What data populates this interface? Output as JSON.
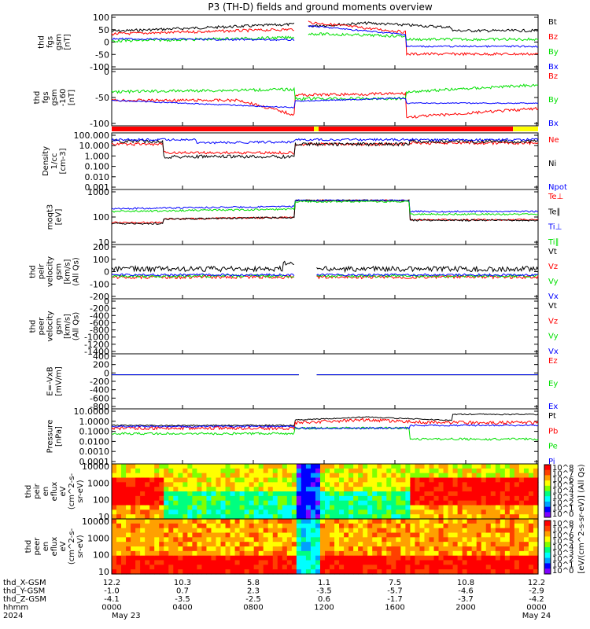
{
  "title": "P3 (TH-D) fields and ground moments overview",
  "colors": {
    "black": "#000000",
    "red": "#ff0000",
    "green": "#00e000",
    "blue": "#0000ff",
    "yellow": "#ffff00"
  },
  "chart_data": [
    {
      "type": "line",
      "ylabel": [
        "thd",
        "fgs",
        "gsm",
        "[nT]"
      ],
      "ylim": [
        -100,
        100
      ],
      "ticks": [
        "100",
        "50",
        "0",
        "-50",
        "-100"
      ],
      "legend": [
        {
          "name": "Bt",
          "color": "#000000"
        },
        {
          "name": "Bz",
          "color": "#ff0000"
        },
        {
          "name": "By",
          "color": "#00e000"
        },
        {
          "name": "Bx",
          "color": "#0000ff"
        }
      ]
    },
    {
      "type": "line",
      "ylabel": [
        "thd",
        "fgs",
        "gsm",
        "-160",
        "[nT]"
      ],
      "ylim": [
        -130,
        40
      ],
      "ticks": [
        "0",
        "-50",
        "-100"
      ],
      "legend": [
        {
          "name": "Bz",
          "color": "#ff0000"
        },
        {
          "name": "By",
          "color": "#00e000"
        },
        {
          "name": "Bx",
          "color": "#0000ff"
        }
      ]
    },
    {
      "type": "line",
      "ylabel": [
        "Density",
        "1/cc",
        "[cm-3]"
      ],
      "scale": "log",
      "ticks": [
        "100.000",
        "10.000",
        "1.000",
        "0.100",
        "0.010",
        "0.001"
      ],
      "legend": [
        {
          "name": "Ne",
          "color": "#ff0000"
        },
        {
          "name": "Ni",
          "color": "#000000"
        },
        {
          "name": "Npot",
          "color": "#0000ff"
        }
      ]
    },
    {
      "type": "line",
      "ylabel": [
        "moqt3",
        "[eV]"
      ],
      "scale": "log",
      "ticks": [
        "1000",
        "100",
        "10"
      ],
      "legend": [
        {
          "name": "Te⊥",
          "color": "#ff0000"
        },
        {
          "name": "Te∥",
          "color": "#000000"
        },
        {
          "name": "Ti⊥",
          "color": "#0000ff"
        },
        {
          "name": "Ti∥",
          "color": "#00e000"
        }
      ]
    },
    {
      "type": "line",
      "ylabel": [
        "thd",
        "peir",
        "velocity",
        "gsm",
        "[km/s]",
        "(All Qs)"
      ],
      "ylim": [
        -250,
        300
      ],
      "ticks": [
        "200",
        "100",
        "0",
        "-100",
        "-200"
      ],
      "legend": [
        {
          "name": "Vt",
          "color": "#000000"
        },
        {
          "name": "Vz",
          "color": "#ff0000"
        },
        {
          "name": "Vy",
          "color": "#00e000"
        },
        {
          "name": "Vx",
          "color": "#0000ff"
        }
      ]
    },
    {
      "type": "line",
      "ylabel": [
        "thd",
        "peer",
        "velocity",
        "gsm",
        "[km/s]",
        "(All Qs)"
      ],
      "ylim": [
        -1500,
        100
      ],
      "ticks": [
        "0",
        "-200",
        "-400",
        "-600",
        "-800",
        "-1000",
        "-1200",
        "-1400"
      ],
      "legend": [
        {
          "name": "Vt",
          "color": "#000000"
        },
        {
          "name": "Vz",
          "color": "#ff0000"
        },
        {
          "name": "Vy",
          "color": "#00e000"
        },
        {
          "name": "Vx",
          "color": "#0000ff"
        }
      ]
    },
    {
      "type": "line",
      "ylabel": [
        "E=-VxB",
        "[mV/m]"
      ],
      "ylim": [
        -850,
        450
      ],
      "ticks": [
        "400",
        "200",
        "0",
        "-200",
        "-400",
        "-600",
        "-800"
      ],
      "legend": [
        {
          "name": "Ez",
          "color": "#ff0000"
        },
        {
          "name": "Ey",
          "color": "#00e000"
        },
        {
          "name": "Ex",
          "color": "#0000ff"
        }
      ]
    },
    {
      "type": "line",
      "ylabel": [
        "Pressure",
        "[nPa]"
      ],
      "scale": "log",
      "ticks": [
        "10.0000",
        "1.0000",
        "0.1000",
        "0.0100",
        "0.0010",
        "0.0001"
      ],
      "legend": [
        {
          "name": "Pt",
          "color": "#000000"
        },
        {
          "name": "Pb",
          "color": "#ff0000"
        },
        {
          "name": "Pe",
          "color": "#00e000"
        },
        {
          "name": "Pi",
          "color": "#0000ff"
        }
      ]
    },
    {
      "type": "heatmap",
      "ylabel": [
        "thd",
        "peir",
        "en",
        "eflux",
        "eV",
        "(cm^2-s-",
        "sr-eV)"
      ],
      "ticks": [
        "10000",
        "1000",
        "100",
        "10"
      ]
    },
    {
      "type": "heatmap",
      "ylabel": [
        "thd",
        "peer",
        "en",
        "eflux",
        "eV",
        "(cm^2-s-",
        "sr-eV)"
      ],
      "ticks": [
        "10000",
        "1000",
        "100",
        "10"
      ]
    }
  ],
  "colorbar": {
    "label": "[eV/(cm^2-s-sr-eV)] (All Qs)",
    "ticks": [
      "10^8",
      "10^7",
      "10^6",
      "10^5",
      "10^4",
      "10^3",
      "10^2",
      "10^1",
      "10^0"
    ]
  },
  "footer": {
    "row_labels": [
      "thd_X-GSM",
      "thd_Y-GSM",
      "thd_Z-GSM",
      "hhmm",
      "2024"
    ],
    "columns": [
      {
        "x": "12.2",
        "y": "-1.0",
        "z": "-4.1",
        "t": "0000",
        "d": "May 23"
      },
      {
        "x": "10.3",
        "y": "0.7",
        "z": "-3.5",
        "t": "0400",
        "d": ""
      },
      {
        "x": "5.8",
        "y": "2.3",
        "z": "-2.5",
        "t": "0800",
        "d": ""
      },
      {
        "x": "1.1",
        "y": "-3.5",
        "z": "0.6",
        "t": "1200",
        "d": ""
      },
      {
        "x": "7.5",
        "y": "-5.7",
        "z": "-1.7",
        "t": "1600",
        "d": ""
      },
      {
        "x": "10.8",
        "y": "-4.6",
        "z": "-3.7",
        "t": "2000",
        "d": ""
      },
      {
        "x": "12.2",
        "y": "-2.9",
        "z": "-4.2",
        "t": "0000",
        "d": "May 24"
      }
    ]
  }
}
